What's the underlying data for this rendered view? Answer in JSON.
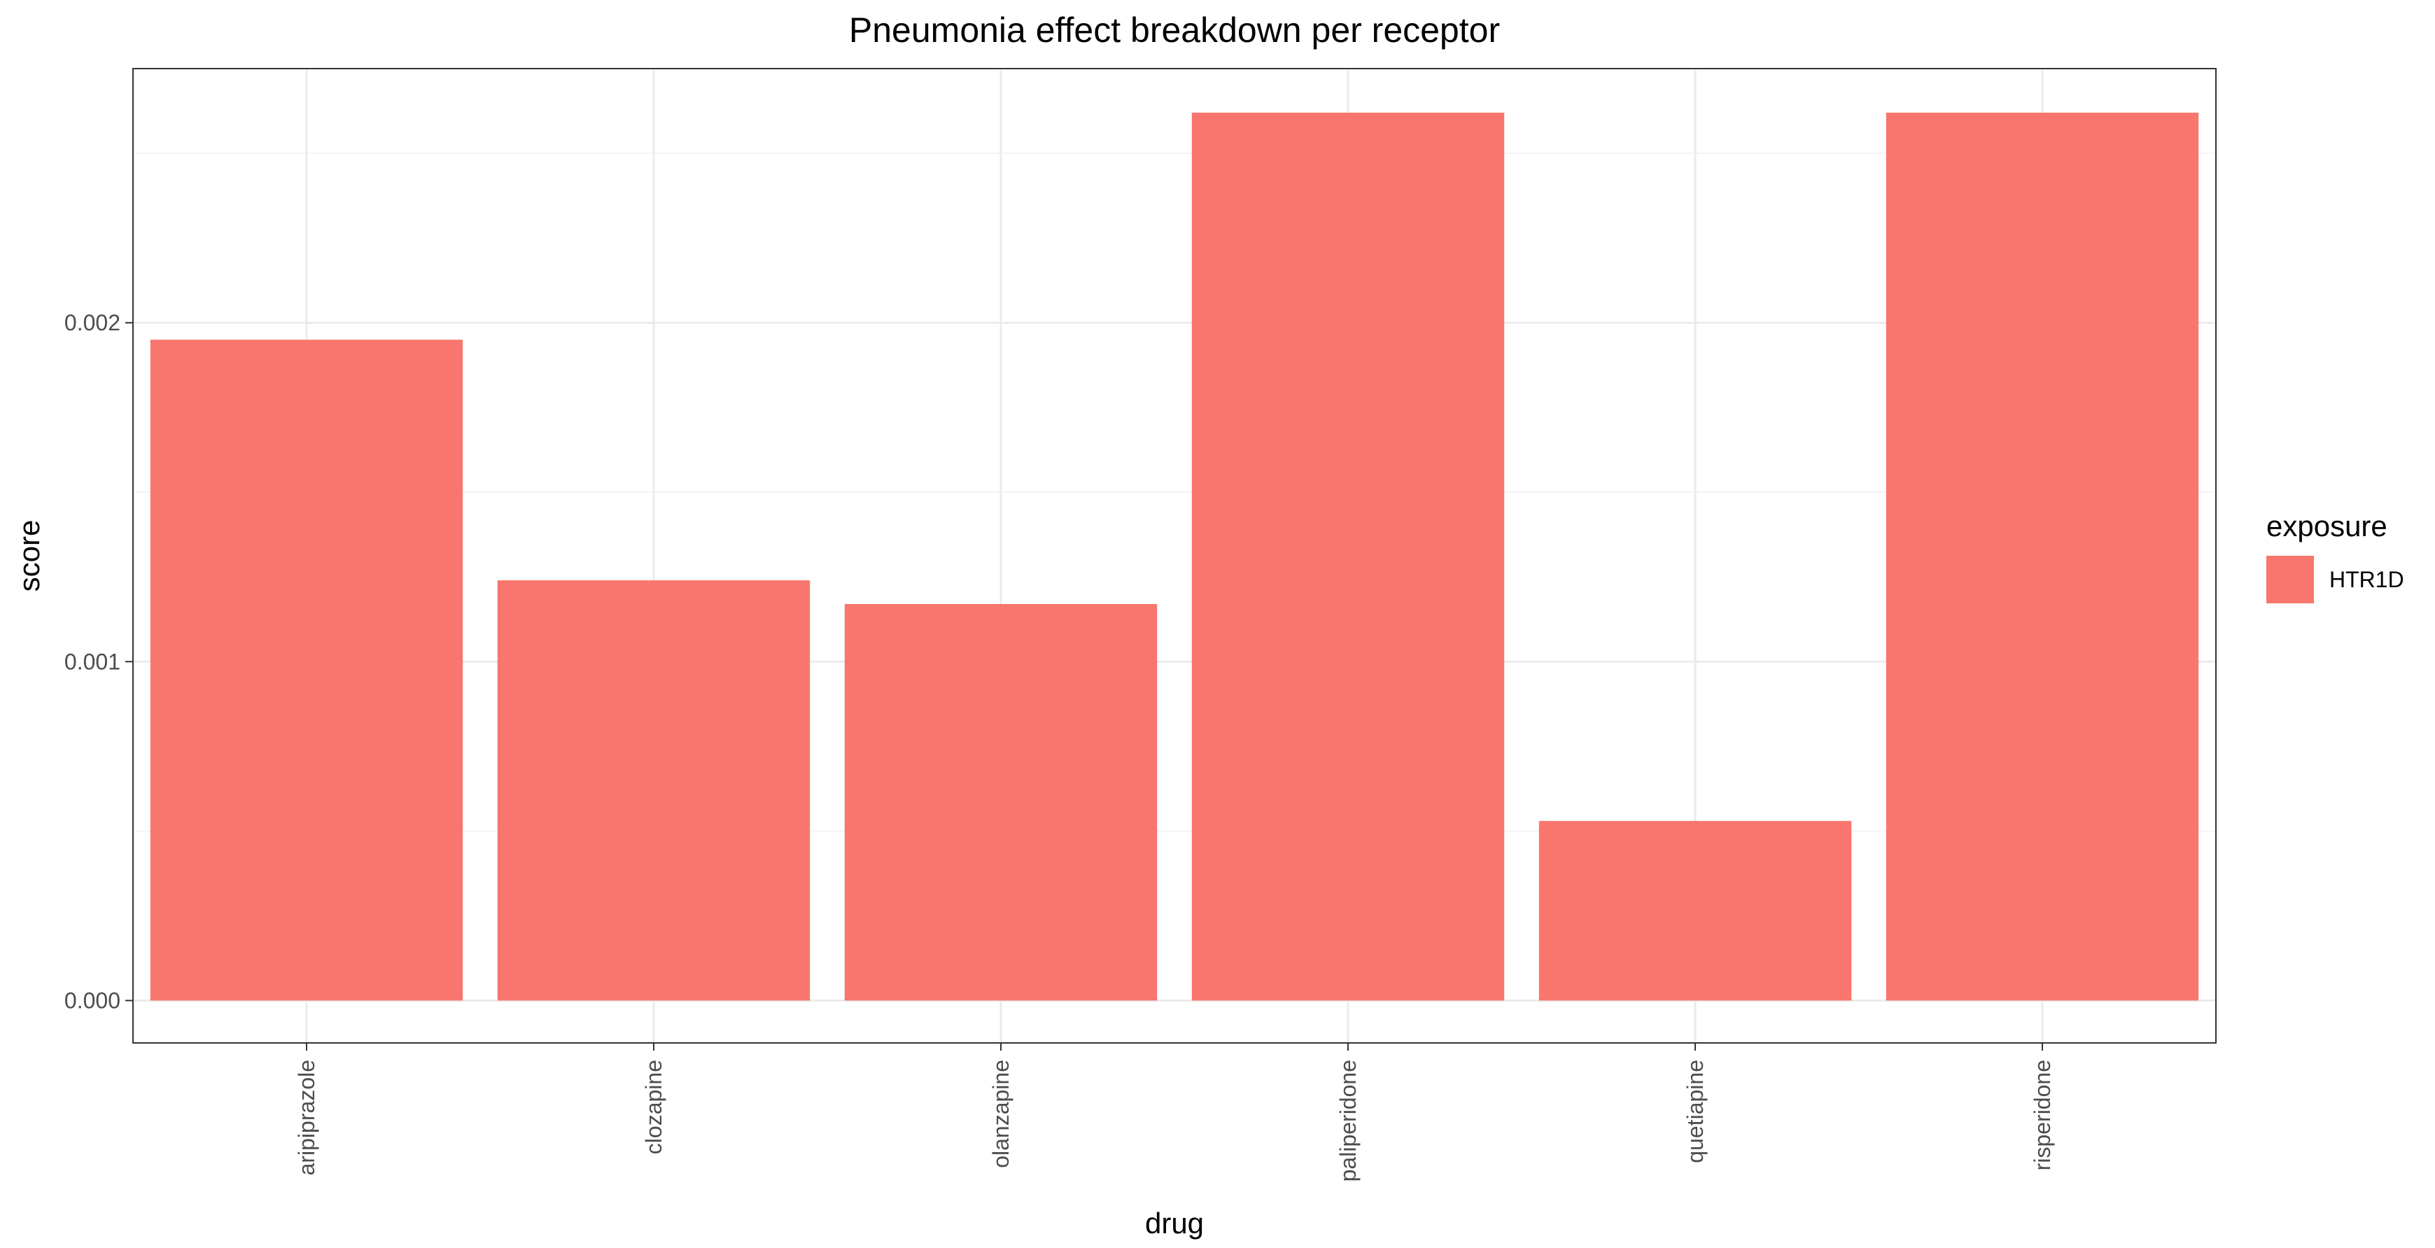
{
  "chart_data": {
    "type": "bar",
    "title": "Pneumonia effect breakdown per receptor",
    "xlabel": "drug",
    "ylabel": "score",
    "categories": [
      "aripiprazole",
      "clozapine",
      "olanzapine",
      "paliperidone",
      "quetiapine",
      "risperidone"
    ],
    "series": [
      {
        "name": "HTR1D",
        "values": [
          0.00195,
          0.00124,
          0.00117,
          0.00262,
          0.00053,
          0.00262
        ]
      }
    ],
    "ylim": [
      -0.000125,
      0.00275
    ],
    "y_ticks": [
      0.0,
      0.001,
      0.002
    ],
    "y_tick_labels": [
      "0.000",
      "0.001",
      "0.002"
    ],
    "grid": true,
    "legend": {
      "title": "exposure",
      "position": "right"
    },
    "colors": {
      "bar": "#f8766d",
      "panel_border": "#333333",
      "grid_major": "#ebebeb",
      "grid_minor": "#f4f4f4",
      "tick": "#333333"
    }
  }
}
